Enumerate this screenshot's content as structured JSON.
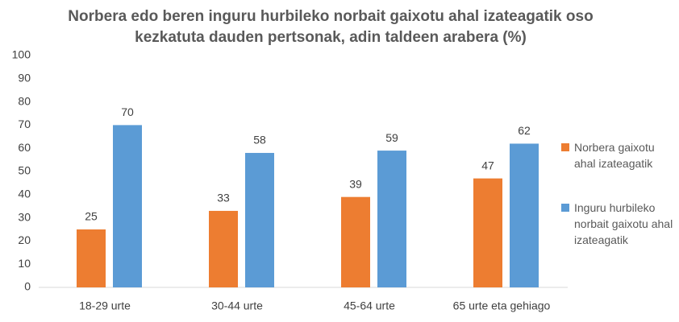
{
  "chart_data": {
    "type": "bar",
    "title": "Norbera edo beren inguru hurbileko norbait gaixotu ahal izateagatik oso kezkatuta dauden pertsonak, adin taldeen arabera (%)",
    "categories": [
      "18-29 urte",
      "30-44 urte",
      "45-64 urte",
      "65 urte eta gehiago"
    ],
    "series": [
      {
        "name": "Norbera gaixotu ahal izateagatik",
        "color": "#ed7d31",
        "values": [
          25,
          33,
          39,
          47
        ]
      },
      {
        "name": "Inguru hurbileko norbait gaixotu ahal izateagatik",
        "color": "#5b9bd5",
        "values": [
          70,
          58,
          59,
          62
        ]
      }
    ],
    "ylim": [
      0,
      100
    ],
    "yticks": [
      0,
      10,
      20,
      30,
      40,
      50,
      60,
      70,
      80,
      90,
      100
    ],
    "grid": false,
    "legend": "right"
  }
}
